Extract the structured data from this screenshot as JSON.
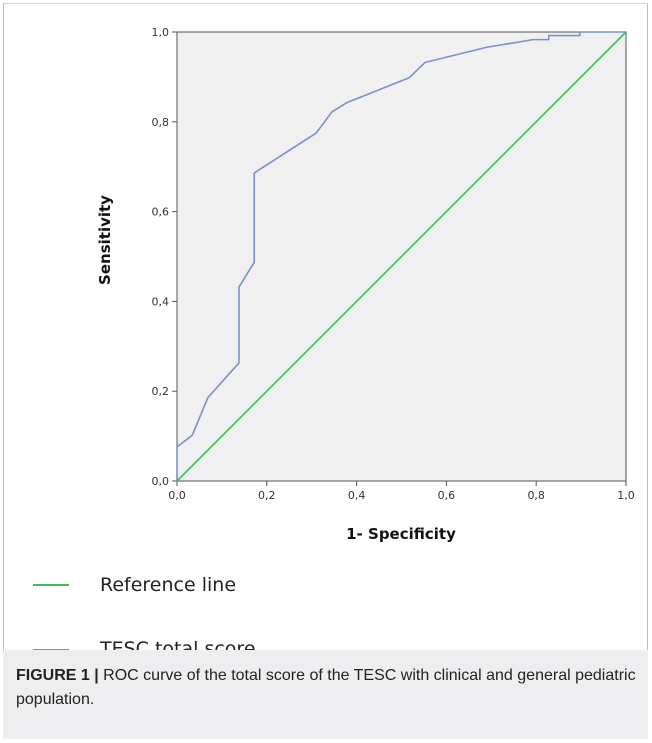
{
  "chart_data": {
    "type": "line",
    "xlabel": "1- Specificity",
    "ylabel": "Sensitivity",
    "xlim": [
      0,
      1
    ],
    "ylim": [
      0,
      1
    ],
    "x_ticks": [
      "0,0",
      "0,2",
      "0,4",
      "0,6",
      "0,8",
      "1,0"
    ],
    "y_ticks": [
      "0,0",
      "0,2",
      "0,4",
      "0,6",
      "0,8",
      "1,0"
    ],
    "grid": false,
    "legend_position": "bottom-left",
    "series": [
      {
        "name": "TESC total score",
        "color": "#7b8fcc",
        "x": [
          0.0,
          0.0,
          0.034,
          0.069,
          0.138,
          0.138,
          0.172,
          0.172,
          0.31,
          0.345,
          0.379,
          0.517,
          0.552,
          0.69,
          0.793,
          0.828,
          0.828,
          0.897,
          0.897,
          0.931,
          1.0
        ],
        "y": [
          0.0,
          0.076,
          0.102,
          0.186,
          0.263,
          0.432,
          0.487,
          0.686,
          0.775,
          0.822,
          0.843,
          0.898,
          0.932,
          0.966,
          0.983,
          0.983,
          0.992,
          0.992,
          1.0,
          1.0,
          1.0
        ]
      },
      {
        "name": "Reference line",
        "color": "#3cbf5a",
        "x": [
          0,
          1
        ],
        "y": [
          0,
          1
        ]
      }
    ]
  },
  "legend": [
    {
      "label": "Reference line",
      "color": "#3cbf5a"
    },
    {
      "label": "TESC total score",
      "color": "#7b8fcc"
    }
  ],
  "caption": {
    "figure_label": "FIGURE 1 |",
    "text": " ROC curve of the total score of the TESC with clinical and general pediatric population."
  }
}
